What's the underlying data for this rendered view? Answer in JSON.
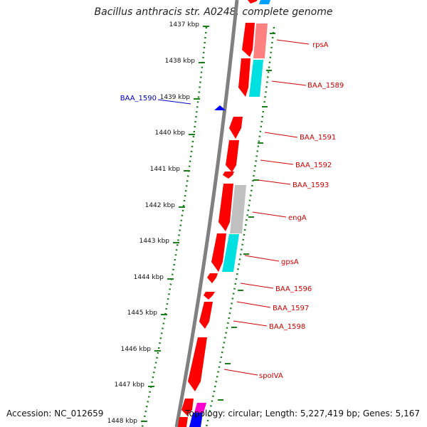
{
  "title": "Bacillus anthracis str. A0248, complete genome",
  "accession": "Accession: NC_012659",
  "topology": "Topology: circular; Length: 5,227,419 bp; Genes: 5,167",
  "colors": {
    "backbone": "#808080",
    "tick": "#1a7f1a",
    "gene_forward": "#ff0000",
    "gene_reverse_blue": "#0000ff",
    "label_red": "#d00000",
    "label_blue": "#0000c0",
    "cog_cyan": "#00e0e0",
    "cog_salmon": "#ff8080",
    "cog_grey": "#c0c0c0",
    "cog_magenta": "#ff00cc"
  },
  "kbp_labels": [
    "1437 kbp",
    "1438 kbp",
    "1439 kbp",
    "1440 kbp",
    "1441 kbp",
    "1442 kbp",
    "1443 kbp",
    "1444 kbp",
    "1445 kbp",
    "1446 kbp",
    "1447 kbp",
    "1448 kbp"
  ],
  "gene_labels_right": [
    "rpsA",
    "BAA_1589",
    "BAA_1591",
    "BAA_1592",
    "BAA_1593",
    "engA",
    "gpsA",
    "BAA_1596",
    "BAA_1597",
    "BAA_1598",
    "spoIVA"
  ],
  "gene_labels_left": [
    "BAA_1590"
  ]
}
